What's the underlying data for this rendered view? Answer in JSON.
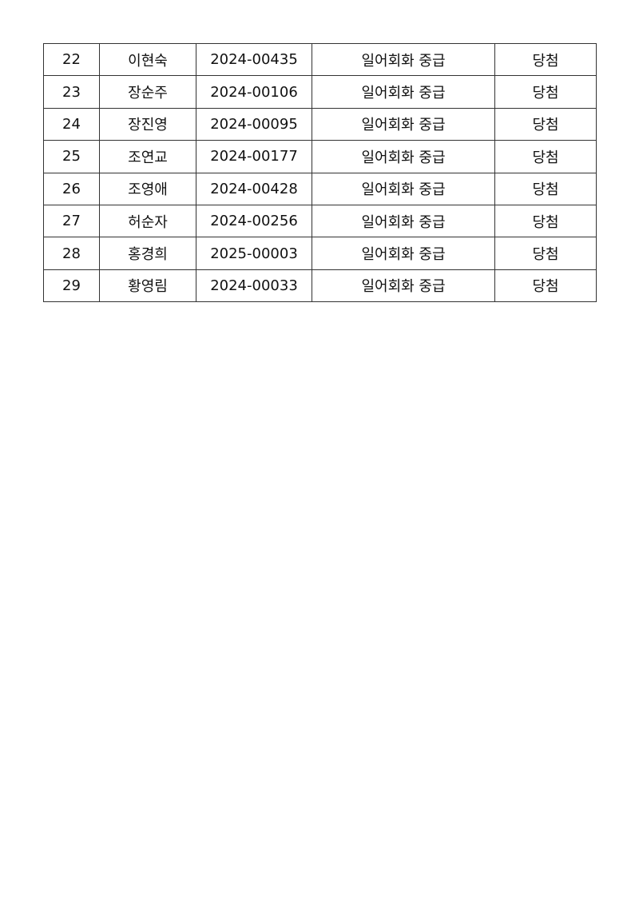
{
  "rows": [
    [
      "22",
      "이현숙",
      "2024-00435",
      "일어회화 중급",
      "당첨"
    ],
    [
      "23",
      "장순주",
      "2024-00106",
      "일어회화 중급",
      "당첨"
    ],
    [
      "24",
      "장진영",
      "2024-00095",
      "일어회화 중급",
      "당첨"
    ],
    [
      "25",
      "조연교",
      "2024-00177",
      "일어회화 중급",
      "당첨"
    ],
    [
      "26",
      "조영애",
      "2024-00428",
      "일어회화 중급",
      "당첨"
    ],
    [
      "27",
      "허순자",
      "2024-00256",
      "일어회화 중급",
      "당첨"
    ],
    [
      "28",
      "홍경희",
      "2025-00003",
      "일어회화 중급",
      "당첨"
    ],
    [
      "29",
      "황영림",
      "2024-00033",
      "일어회화 중급",
      "당첨"
    ]
  ]
}
